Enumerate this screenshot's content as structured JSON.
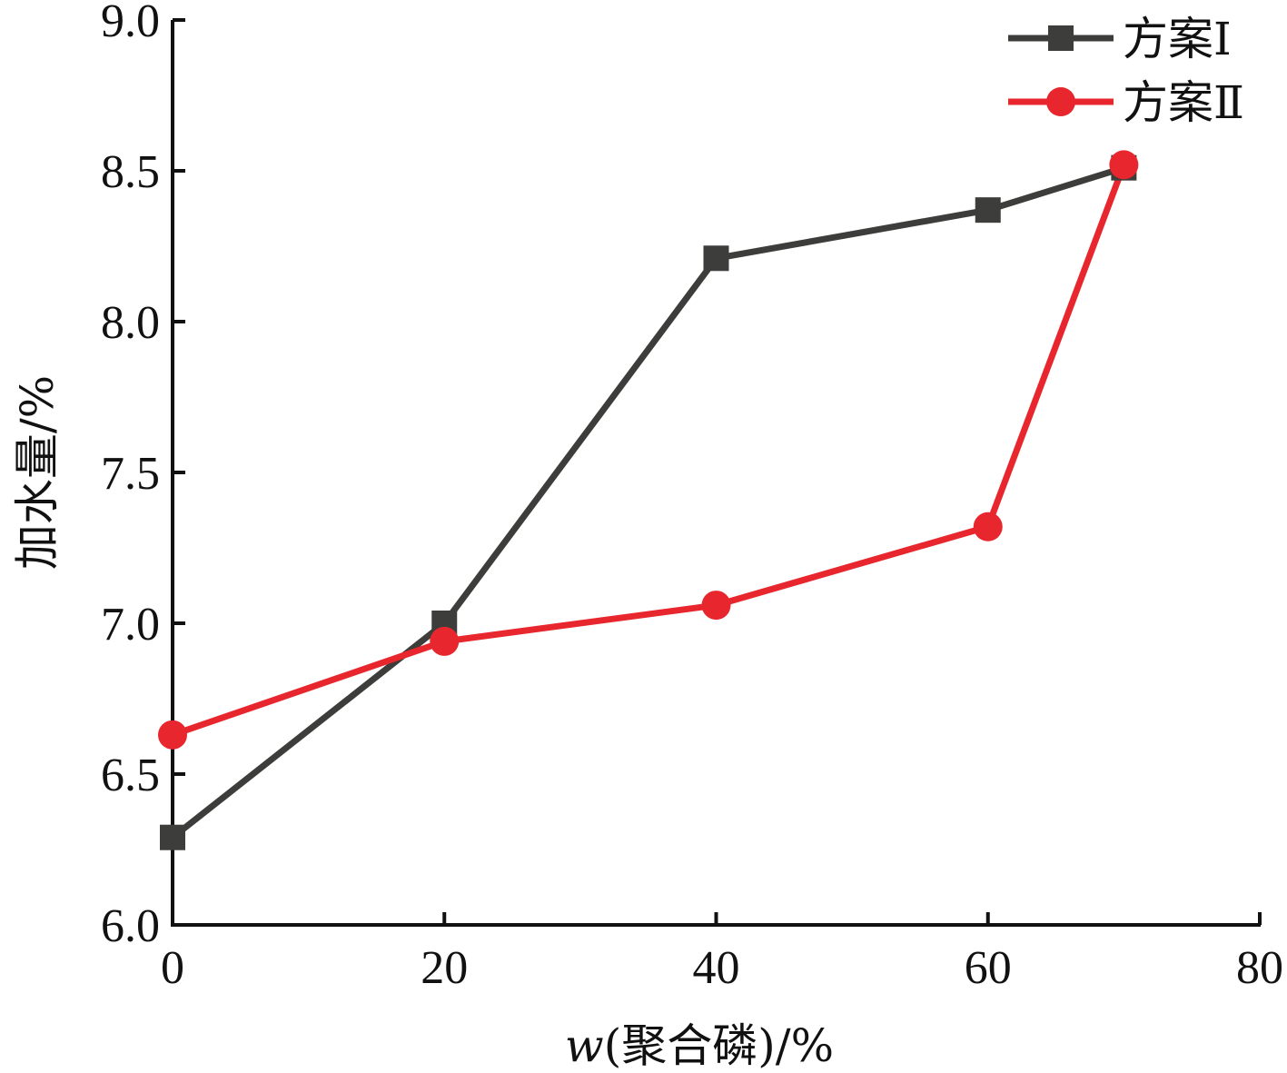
{
  "chart_data": {
    "type": "line",
    "title": "",
    "xlabel_var": "w",
    "xlabel_rest": "(聚合磷)/%",
    "ylabel": "加水量/%",
    "xlim": [
      0,
      80
    ],
    "ylim": [
      6.0,
      9.0
    ],
    "x_ticks": [
      "0",
      "20",
      "40",
      "60",
      "80"
    ],
    "y_ticks": [
      "6.0",
      "6.5",
      "7.0",
      "7.5",
      "8.0",
      "8.5",
      "9.0"
    ],
    "grid": false,
    "legend_position": "top-right",
    "series": [
      {
        "name": "方案Ⅰ",
        "marker": "square",
        "color": "#3d3d3b",
        "x": [
          0,
          20,
          40,
          60,
          70
        ],
        "y": [
          6.29,
          7.0,
          8.21,
          8.37,
          8.51
        ]
      },
      {
        "name": "方案Ⅱ",
        "marker": "circle",
        "color": "#e8262d",
        "x": [
          0,
          20,
          40,
          60,
          70
        ],
        "y": [
          6.63,
          6.94,
          7.06,
          7.32,
          8.52
        ]
      }
    ]
  }
}
